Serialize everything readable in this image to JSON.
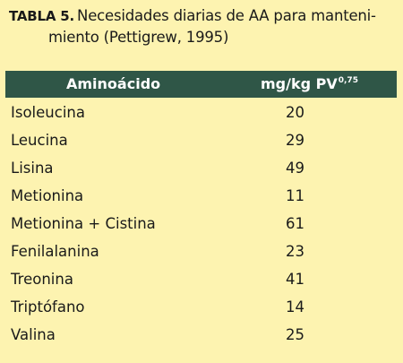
{
  "caption": {
    "label": "TABLA 5.",
    "text_line1": "Necesidades diarias de AA para manteni-",
    "text_line2": "miento (Pettigrew, 1995)"
  },
  "table": {
    "headers": {
      "col1": "Aminoácido",
      "col2_main": "mg/kg PV",
      "col2_exp": "0,75"
    },
    "rows": [
      {
        "name": "Isoleucina",
        "value": "20"
      },
      {
        "name": "Leucina",
        "value": "29"
      },
      {
        "name": "Lisina",
        "value": "49"
      },
      {
        "name": "Metionina",
        "value": "11"
      },
      {
        "name": "Metionina + Cistina",
        "value": "61"
      },
      {
        "name": "Fenilalanina",
        "value": "23"
      },
      {
        "name": "Treonina",
        "value": "41"
      },
      {
        "name": "Triptófano",
        "value": "14"
      },
      {
        "name": "Valina",
        "value": "25"
      }
    ]
  }
}
